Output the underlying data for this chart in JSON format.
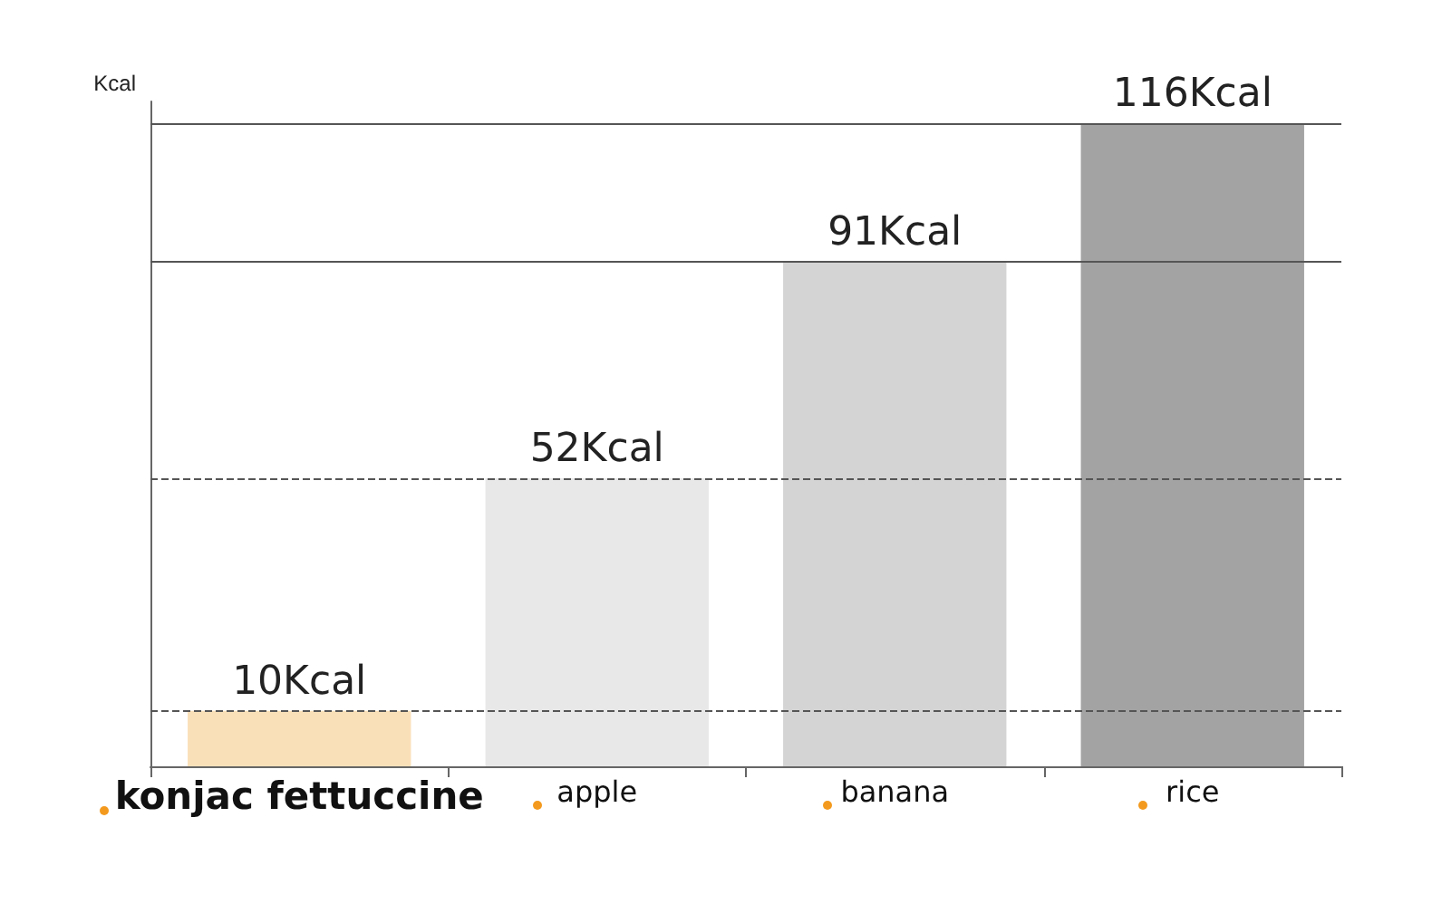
{
  "chart_data": {
    "type": "bar",
    "ylabel": "Kcal",
    "categories": [
      "konjac fettuccine",
      "apple",
      "banana",
      "rice"
    ],
    "values": [
      10,
      52,
      91,
      116
    ],
    "colors": [
      "#fae0b8",
      "#e8e8e8",
      "#d4d4d4",
      "#a3a3a3"
    ],
    "value_labels": [
      "10Kcal",
      "52Kcal",
      "91Kcal",
      "116Kcal"
    ],
    "ref_lines": [
      {
        "axis": "y",
        "value": 10,
        "line_style": "dashed",
        "color": "#555555"
      },
      {
        "axis": "y",
        "value": 52,
        "line_style": "dashed",
        "color": "#555555"
      },
      {
        "axis": "y",
        "value": 91,
        "line_style": "solid",
        "color": "#555555"
      },
      {
        "axis": "y",
        "value": 116,
        "line_style": "solid",
        "color": "#555555"
      }
    ],
    "tick_labels": "x",
    "grid": false
  }
}
